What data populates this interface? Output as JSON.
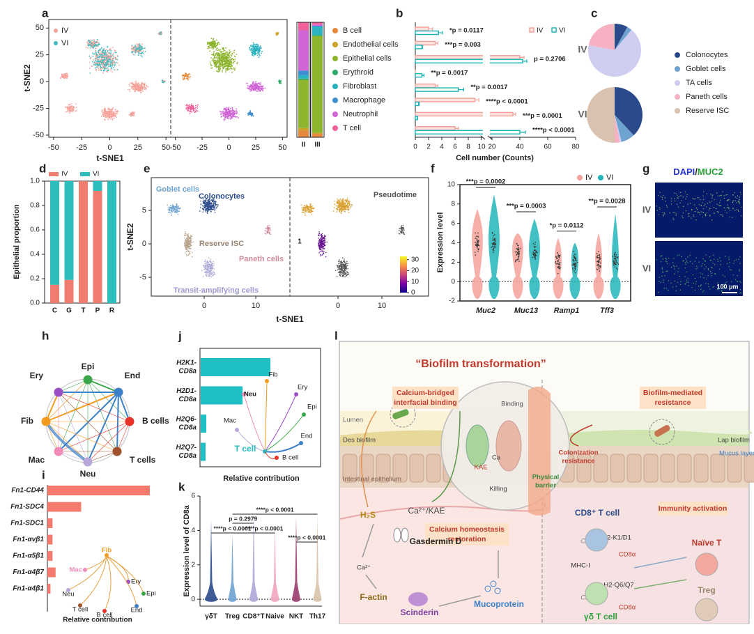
{
  "panels": {
    "a": {
      "label": "a",
      "legend": [
        {
          "name": "IV",
          "color": "#f4a29a"
        },
        {
          "name": "VI",
          "color": "#3cbcc0"
        }
      ],
      "xlabel": "t-SNE1",
      "ylabel": "t-SNE2",
      "xlim": [
        -53,
        53
      ],
      "ylim": [
        -52,
        58
      ],
      "xticks": [
        -50,
        -25,
        0,
        25,
        50
      ],
      "yticks": [
        -50,
        -25,
        0,
        25,
        50
      ],
      "stack": {
        "type": "bar",
        "stacked": true,
        "categories": [
          "II",
          "III"
        ],
        "ylim": [
          0,
          100
        ],
        "series": [
          {
            "name": "B cell",
            "color": "#e58a3c",
            "values": [
              6,
              3
            ]
          },
          {
            "name": "Endothelial cells",
            "color": "#c9a227",
            "values": [
              2,
              1
            ]
          },
          {
            "name": "Epithelial cells",
            "color": "#8db52e",
            "values": [
              42,
              84
            ]
          },
          {
            "name": "Erythroid",
            "color": "#2ea866",
            "values": [
              1,
              1
            ]
          },
          {
            "name": "Fibroblast",
            "color": "#2bb3c0",
            "values": [
              3,
              7
            ]
          },
          {
            "name": "Macrophage",
            "color": "#3d8fd1",
            "values": [
              4,
              1
            ]
          },
          {
            "name": "Neutrophil",
            "color": "#d066d6",
            "values": [
              35,
              1
            ]
          },
          {
            "name": "T cell",
            "color": "#f0609a",
            "values": [
              7,
              2
            ]
          }
        ]
      }
    },
    "b": {
      "label": "b",
      "type": "bar",
      "orientation": "horizontal",
      "xlabel": "Cell number (Counts)",
      "xticks": [
        0,
        2,
        4,
        6,
        8,
        10,
        20,
        40,
        60,
        80
      ],
      "axis_break": true,
      "series": [
        {
          "name": "IV",
          "color": "#f4a29a",
          "values": [
            2,
            3,
            40,
            0,
            3,
            9,
            35,
            6
          ],
          "errors": [
            0.6,
            0.4,
            3,
            0,
            0.4,
            0.6,
            2,
            0.5
          ]
        },
        {
          "name": "VI",
          "color": "#22b5b8",
          "values": [
            3.5,
            1,
            42,
            1,
            6.5,
            0.5,
            0.3,
            40
          ],
          "errors": [
            0.6,
            0.1,
            3,
            0.3,
            0.8,
            0.1,
            0.05,
            4
          ]
        }
      ],
      "p_labels": [
        "*p = 0.0117",
        "***p = 0.003",
        "p = 0.2706",
        "**p = 0.0017",
        "**p = 0.0017",
        "****p < 0.0001",
        "***p = 0.0001",
        "****p < 0.0001"
      ]
    },
    "c": {
      "label": "c",
      "type": "pie",
      "categories": [
        "Colonocytes",
        "Goblet cells",
        "TA cells",
        "Paneth cells",
        "Reserve ISC"
      ],
      "colors": [
        "#2a4a8c",
        "#6ea3d0",
        "#cfcdf0",
        "#f6b1c3",
        "#d9c3b0"
      ],
      "pies": [
        {
          "name": "IV",
          "values": [
            8,
            3,
            67,
            21,
            1
          ]
        },
        {
          "name": "VI",
          "values": [
            38,
            8,
            1,
            3,
            50
          ]
        }
      ]
    },
    "d": {
      "label": "d",
      "type": "bar",
      "stacked": true,
      "categories": [
        "C",
        "G",
        "T",
        "P",
        "R"
      ],
      "ylabel": "Epithelial proportion",
      "ylim": [
        0,
        1
      ],
      "yticks": [
        {
          "value": 0,
          "label": "0.0"
        },
        0.2,
        0.4,
        0.6,
        0.8,
        {
          "value": 1,
          "label": "1.0"
        }
      ],
      "series": [
        {
          "name": "IV",
          "color": "#f07b6f",
          "values": [
            0.15,
            0.19,
            1,
            0.92,
            0
          ]
        },
        {
          "name": "VI",
          "color": "#2ebdbd",
          "values": [
            0.85,
            0.81,
            0,
            0.08,
            1
          ]
        }
      ]
    },
    "e": {
      "label": "e",
      "clusters": [
        "Goblet cells",
        "Colonocytes",
        "Reserve ISC",
        "Paneth cells",
        "Transit-amplifying cells"
      ],
      "pseudotime": "Pseudotime",
      "start": "1",
      "xlabel": "t-SNE1",
      "ylabel": "t-SNE2",
      "xticks": [
        0,
        10
      ],
      "yticks": [
        -5,
        0,
        5
      ],
      "colorbar_ticks": [
        0,
        10,
        20,
        30
      ],
      "colorbar_lim": [
        0,
        33
      ]
    },
    "f": {
      "label": "f",
      "legend": [
        {
          "name": "IV",
          "color": "#f4a29a"
        },
        {
          "name": "VI",
          "color": "#22b5b8"
        }
      ],
      "ylabel": "Expression level",
      "ylim": [
        -2,
        10
      ],
      "yticks": [
        -2,
        0,
        2,
        4,
        6,
        8,
        10
      ],
      "categories": [
        "Muc2",
        "Muc13",
        "Ramp1",
        "Tff3"
      ],
      "p_labels": [
        "***p = 0.0002",
        "***p = 0.0003",
        "*p = 0.0112",
        "**p = 0.0028"
      ]
    },
    "g": {
      "label": "g",
      "title": [
        "DAPI",
        "/",
        "MUC2"
      ],
      "rows": [
        "IV",
        "VI"
      ],
      "scale": "100 μm"
    },
    "h": {
      "label": "h",
      "nodes": [
        {
          "label": "Epi",
          "color": "#3aa84a"
        },
        {
          "label": "End",
          "color": "#3a7fc8"
        },
        {
          "label": "B cells",
          "color": "#e8332a"
        },
        {
          "label": "T cells",
          "color": "#a0522d"
        },
        {
          "label": "Neu",
          "color": "#b7a6d8"
        },
        {
          "label": "Mac",
          "color": "#f08bb8"
        },
        {
          "label": "Fib",
          "color": "#f29b1f"
        },
        {
          "label": "Ery",
          "color": "#9a4ec4"
        }
      ]
    },
    "i": {
      "label": "i",
      "type": "bar",
      "orientation": "horizontal",
      "color": "#f47a6e",
      "categories": [
        "Fn1-CD44",
        "Fn1-SDC4",
        "Fn1-SDC1",
        "Fn1-αvβ1",
        "Fn1-α5β1",
        "Fn1-α4β7",
        "Fn1-α4β1"
      ],
      "values": [
        1,
        0.33,
        0.05,
        0.05,
        0.05,
        0.08,
        0.03
      ],
      "xlim": [
        0,
        1
      ],
      "xlabel": "Relative contribution",
      "network": [
        "Fib",
        "Mac",
        "Ery",
        "Epi",
        "Neu",
        "T cell",
        "B cell",
        "End"
      ]
    },
    "j": {
      "label": "j",
      "type": "bar",
      "orientation": "horizontal",
      "color": "#20bfc4",
      "categories": [
        [
          "H2K1-",
          "CD8a"
        ],
        [
          "H2D1-",
          "CD8a"
        ],
        [
          "H2Q6-",
          "CD8a"
        ],
        [
          "H2Q7-",
          "CD8a"
        ]
      ],
      "values": [
        1,
        0.6,
        0.08,
        0.07
      ],
      "xlim": [
        0,
        1
      ],
      "xlabel": "Relative contribution",
      "network": [
        "Fib",
        "Ery",
        "Neu",
        "Epi",
        "Mac",
        "End",
        "T cell",
        "B cell"
      ]
    },
    "k": {
      "label": "k",
      "ylabel": "Expression level of CD8a",
      "ylim": [
        -0.4,
        6
      ],
      "yticks": [
        0,
        2,
        4,
        6
      ],
      "categories": [
        "γδT",
        "Treg",
        "CD8⁺T",
        "Naive",
        "NKT",
        "Th17"
      ],
      "colors": [
        "#2a4a8c",
        "#6ea3d0",
        "#b0a6d8",
        "#f2a5c0",
        "#9a3b6e",
        "#d9c3a8"
      ],
      "p_labels": [
        "****p < 0.0001",
        "p = 0.2979",
        "****p < 0.0001",
        "****p < 0.0001",
        "****p < 0.0001"
      ]
    },
    "l": {
      "label": "l",
      "title": "“Biofilm transformation”",
      "binding_box": [
        "Calcium-bridged",
        "interfacial binding"
      ],
      "resistance_box": [
        "Biofilm-mediated",
        "resistance"
      ],
      "lumen": "Lumen",
      "des": "Des biofilm",
      "epithelium": "Intestinal epithelium",
      "binding": "Binding",
      "kae": "KAE",
      "ca": "Ca",
      "killing": "Killing",
      "barrier": [
        "Physical",
        "barrier"
      ],
      "colonization": [
        "Colonization",
        "resistance"
      ],
      "lap": "Lap biofilm",
      "mucus": "Mucus layer",
      "h2s": "H₂S",
      "ca_kae": "Ca²⁺/KAE",
      "homeostasis": [
        "Calcium homeostasis",
        "restoration"
      ],
      "gasdermin": "Gasdermin D",
      "ca2": "Ca²⁺",
      "factin": "F-actin",
      "scinderin": "Scinderin",
      "mucoprotein": "Mucoprotein",
      "immunity": "Immunity activation",
      "cd8": "CD8⁺ T cell",
      "h2k1": "H2-K1/D1",
      "cmss1": "Cmss1",
      "cd8a": "CD8α",
      "mhc": "MHC-I",
      "naive": "Naïve T",
      "treg": "Treg",
      "h2q6": "H2-Q6/Q7",
      "cmss1b": "Cmss1",
      "cd8a2": "CD8α",
      "gd": "γδ T cell"
    }
  }
}
